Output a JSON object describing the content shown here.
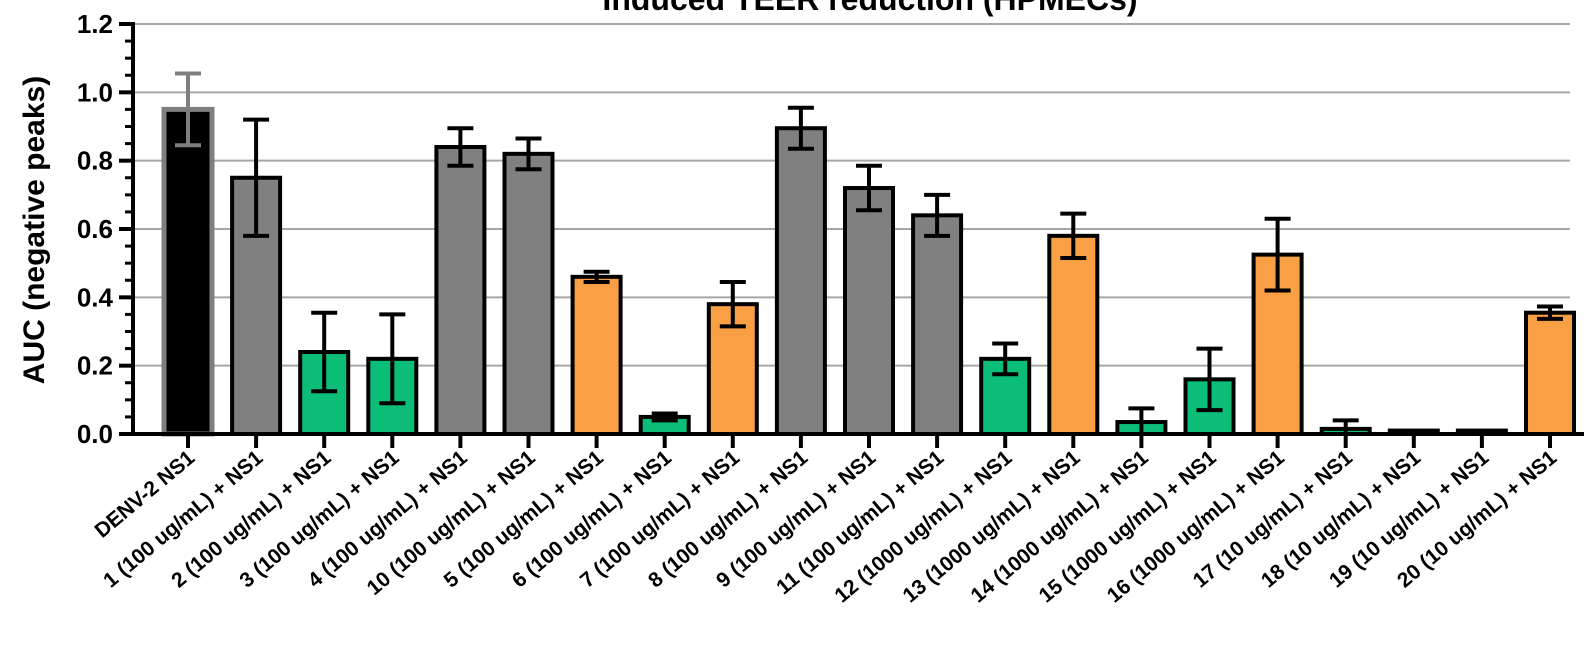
{
  "chart_data": {
    "type": "bar",
    "title": "Induced TEER reduction (HPMECs)",
    "xlabel": "",
    "ylabel": "AUC (negative peaks)",
    "ylim": [
      0,
      1.2
    ],
    "yticks": [
      "0.0",
      "0.2",
      "0.4",
      "0.6",
      "0.8",
      "1.0",
      "1.2"
    ],
    "grid": "horizontal",
    "categories": [
      "DENV-2 NS1",
      "1 (100 ug/mL) + NS1",
      "2 (100 ug/mL) + NS1",
      "3 (100 ug/mL) + NS1",
      "4 (100 ug/mL) + NS1",
      "10 (100 ug/mL) + NS1",
      "5 (100 ug/mL) + NS1",
      "6 (100 ug/mL) + NS1",
      "7 (100 ug/mL) + NS1",
      "8 (100 ug/mL) + NS1",
      "9 (100 ug/mL) + NS1",
      "11 (100 ug/mL) + NS1",
      "12 (1000 ug/mL) + NS1",
      "13 (1000 ug/mL) + NS1",
      "14 (1000 ug/mL) + NS1",
      "15 (1000 ug/mL) + NS1",
      "16 (1000 ug/mL) + NS1",
      "17 (10 ug/mL) + NS1",
      "18 (10 ug/mL) + NS1",
      "19 (10 ug/mL) + NS1",
      "20 (10 ug/mL) + NS1"
    ],
    "values": [
      0.95,
      0.75,
      0.24,
      0.22,
      0.84,
      0.82,
      0.46,
      0.05,
      0.38,
      0.895,
      0.72,
      0.64,
      0.22,
      0.58,
      0.035,
      0.16,
      0.525,
      0.015,
      0.01,
      0.01,
      0.355
    ],
    "errors": [
      0.105,
      0.17,
      0.115,
      0.13,
      0.055,
      0.045,
      0.015,
      0.01,
      0.065,
      0.06,
      0.065,
      0.06,
      0.045,
      0.065,
      0.04,
      0.09,
      0.105,
      0.025,
      0.0,
      0.0,
      0.018
    ],
    "bar_colors": [
      "#000000",
      "#808080",
      "#0bbd77",
      "#0bbd77",
      "#808080",
      "#808080",
      "#f9a044",
      "#0bbd77",
      "#f9a044",
      "#808080",
      "#808080",
      "#808080",
      "#0bbd77",
      "#f9a044",
      "#0bbd77",
      "#0bbd77",
      "#f9a044",
      "#0bbd77",
      "#0bbd77",
      "#0bbd77",
      "#f9a044"
    ],
    "control_outline_color": "#7f7f7f"
  }
}
